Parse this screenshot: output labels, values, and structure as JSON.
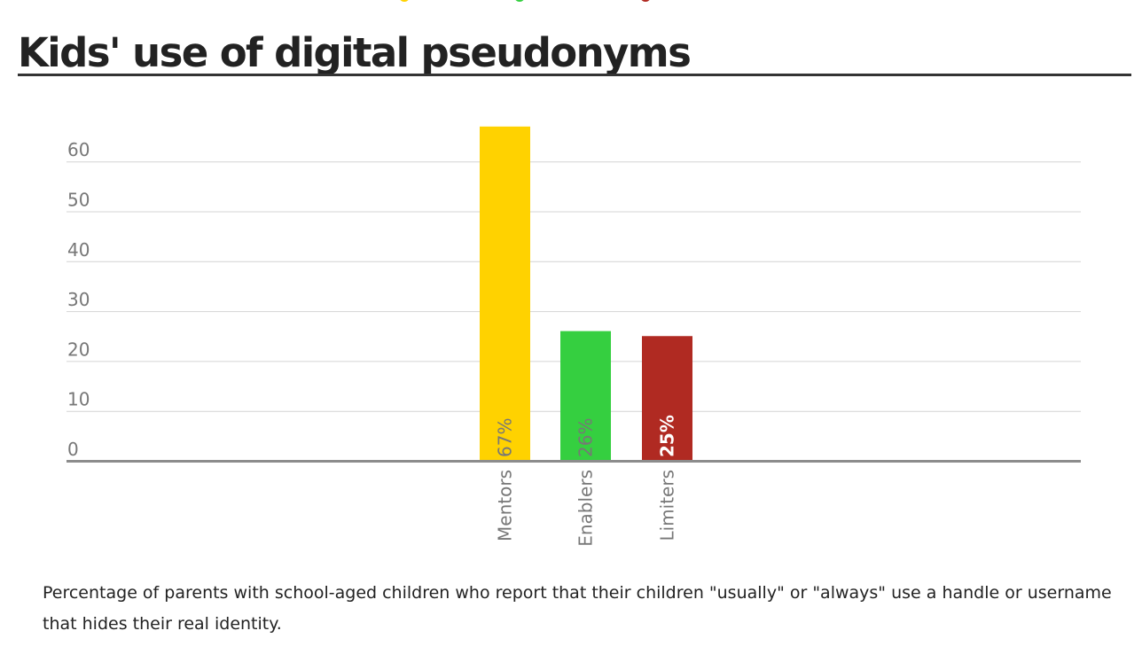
{
  "header": {
    "title": "Kids' use of digital pseudonyms",
    "dot_colors": [
      "#ffd200",
      "#35cf40",
      "#b02a22"
    ]
  },
  "caption": "Percentage of parents with school-aged children who report that their children \"usually\" or \"always\" use a handle or username that hides their real identity.",
  "chart_data": {
    "type": "bar",
    "title": "Kids' use of digital pseudonyms",
    "xlabel": "",
    "ylabel": "",
    "categories": [
      "Mentors",
      "Enablers",
      "Limiters"
    ],
    "values": [
      67,
      26,
      25
    ],
    "data_labels": [
      "67%",
      "26%",
      "25%"
    ],
    "colors": [
      "#ffd200",
      "#35cf40",
      "#b02a22"
    ],
    "label_colors": [
      "#777777",
      "#777777",
      "#ffffff"
    ],
    "y_ticks": [
      0,
      10,
      20,
      30,
      40,
      50,
      60
    ],
    "ylim": [
      0,
      67
    ],
    "grid": true,
    "legend": "none"
  }
}
